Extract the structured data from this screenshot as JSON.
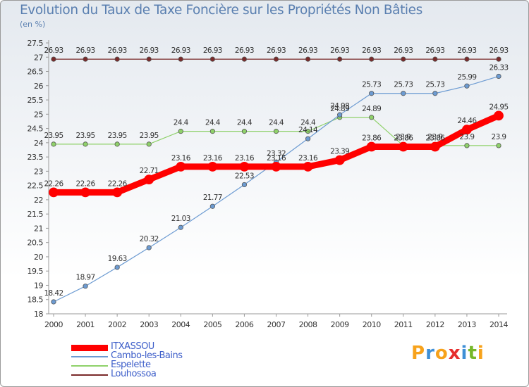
{
  "title": "Evolution du Taux de Taxe Foncière sur les Propriétés Non Bâties",
  "unit": "(en %)",
  "logo": {
    "text": "Proxiti",
    "letters": [
      "P",
      "r",
      "o",
      "x",
      "i",
      "t",
      "i"
    ],
    "colors": [
      "#f7a21b",
      "#3e8fd6",
      "#f7a21b",
      "#e62d2d",
      "#3e8fd6",
      "#76b82a",
      "#f7a21b"
    ]
  },
  "chart_data": {
    "type": "line",
    "title": "Evolution du Taux de Taxe Foncière sur les Propriétés Non Bâties",
    "ylabel": "(en %)",
    "xlabel": "",
    "ylim": [
      18,
      27.5
    ],
    "yticks": [
      18,
      18.5,
      19,
      19.5,
      20,
      20.5,
      21,
      21.5,
      22,
      22.5,
      23,
      23.5,
      24,
      24.5,
      25,
      25.5,
      26,
      26.5,
      27,
      27.5
    ],
    "x": [
      "2000",
      "2001",
      "2002",
      "2003",
      "2004",
      "2005",
      "2006",
      "2007",
      "2008",
      "2009",
      "2010",
      "2011",
      "2012",
      "2013",
      "2014"
    ],
    "grid": false,
    "legend_position": "bottom-left",
    "series": [
      {
        "name": "ITXASSOU",
        "color": "#ff0000",
        "width": 9,
        "values": [
          22.26,
          22.26,
          22.26,
          22.71,
          23.16,
          23.16,
          23.16,
          23.16,
          23.16,
          23.39,
          23.86,
          23.86,
          23.86,
          24.46,
          24.95
        ]
      },
      {
        "name": "Cambo-les-Bains",
        "color": "#6c9bd2",
        "width": 1.2,
        "values": [
          18.42,
          18.97,
          19.63,
          20.32,
          21.03,
          21.77,
          22.53,
          23.32,
          24.14,
          24.98,
          25.73,
          25.73,
          25.73,
          25.99,
          26.33
        ]
      },
      {
        "name": "Espelette",
        "color": "#8fd16a",
        "width": 1.2,
        "values": [
          23.95,
          23.95,
          23.95,
          23.95,
          24.4,
          24.4,
          24.4,
          24.4,
          24.4,
          24.89,
          24.89,
          23.9,
          23.9,
          23.9,
          23.9
        ]
      },
      {
        "name": "Louhossoa",
        "color": "#7a2a2a",
        "width": 1.2,
        "values": [
          26.93,
          26.93,
          26.93,
          26.93,
          26.93,
          26.93,
          26.93,
          26.93,
          26.93,
          26.93,
          26.93,
          26.93,
          26.93,
          26.93,
          26.93
        ]
      }
    ]
  }
}
